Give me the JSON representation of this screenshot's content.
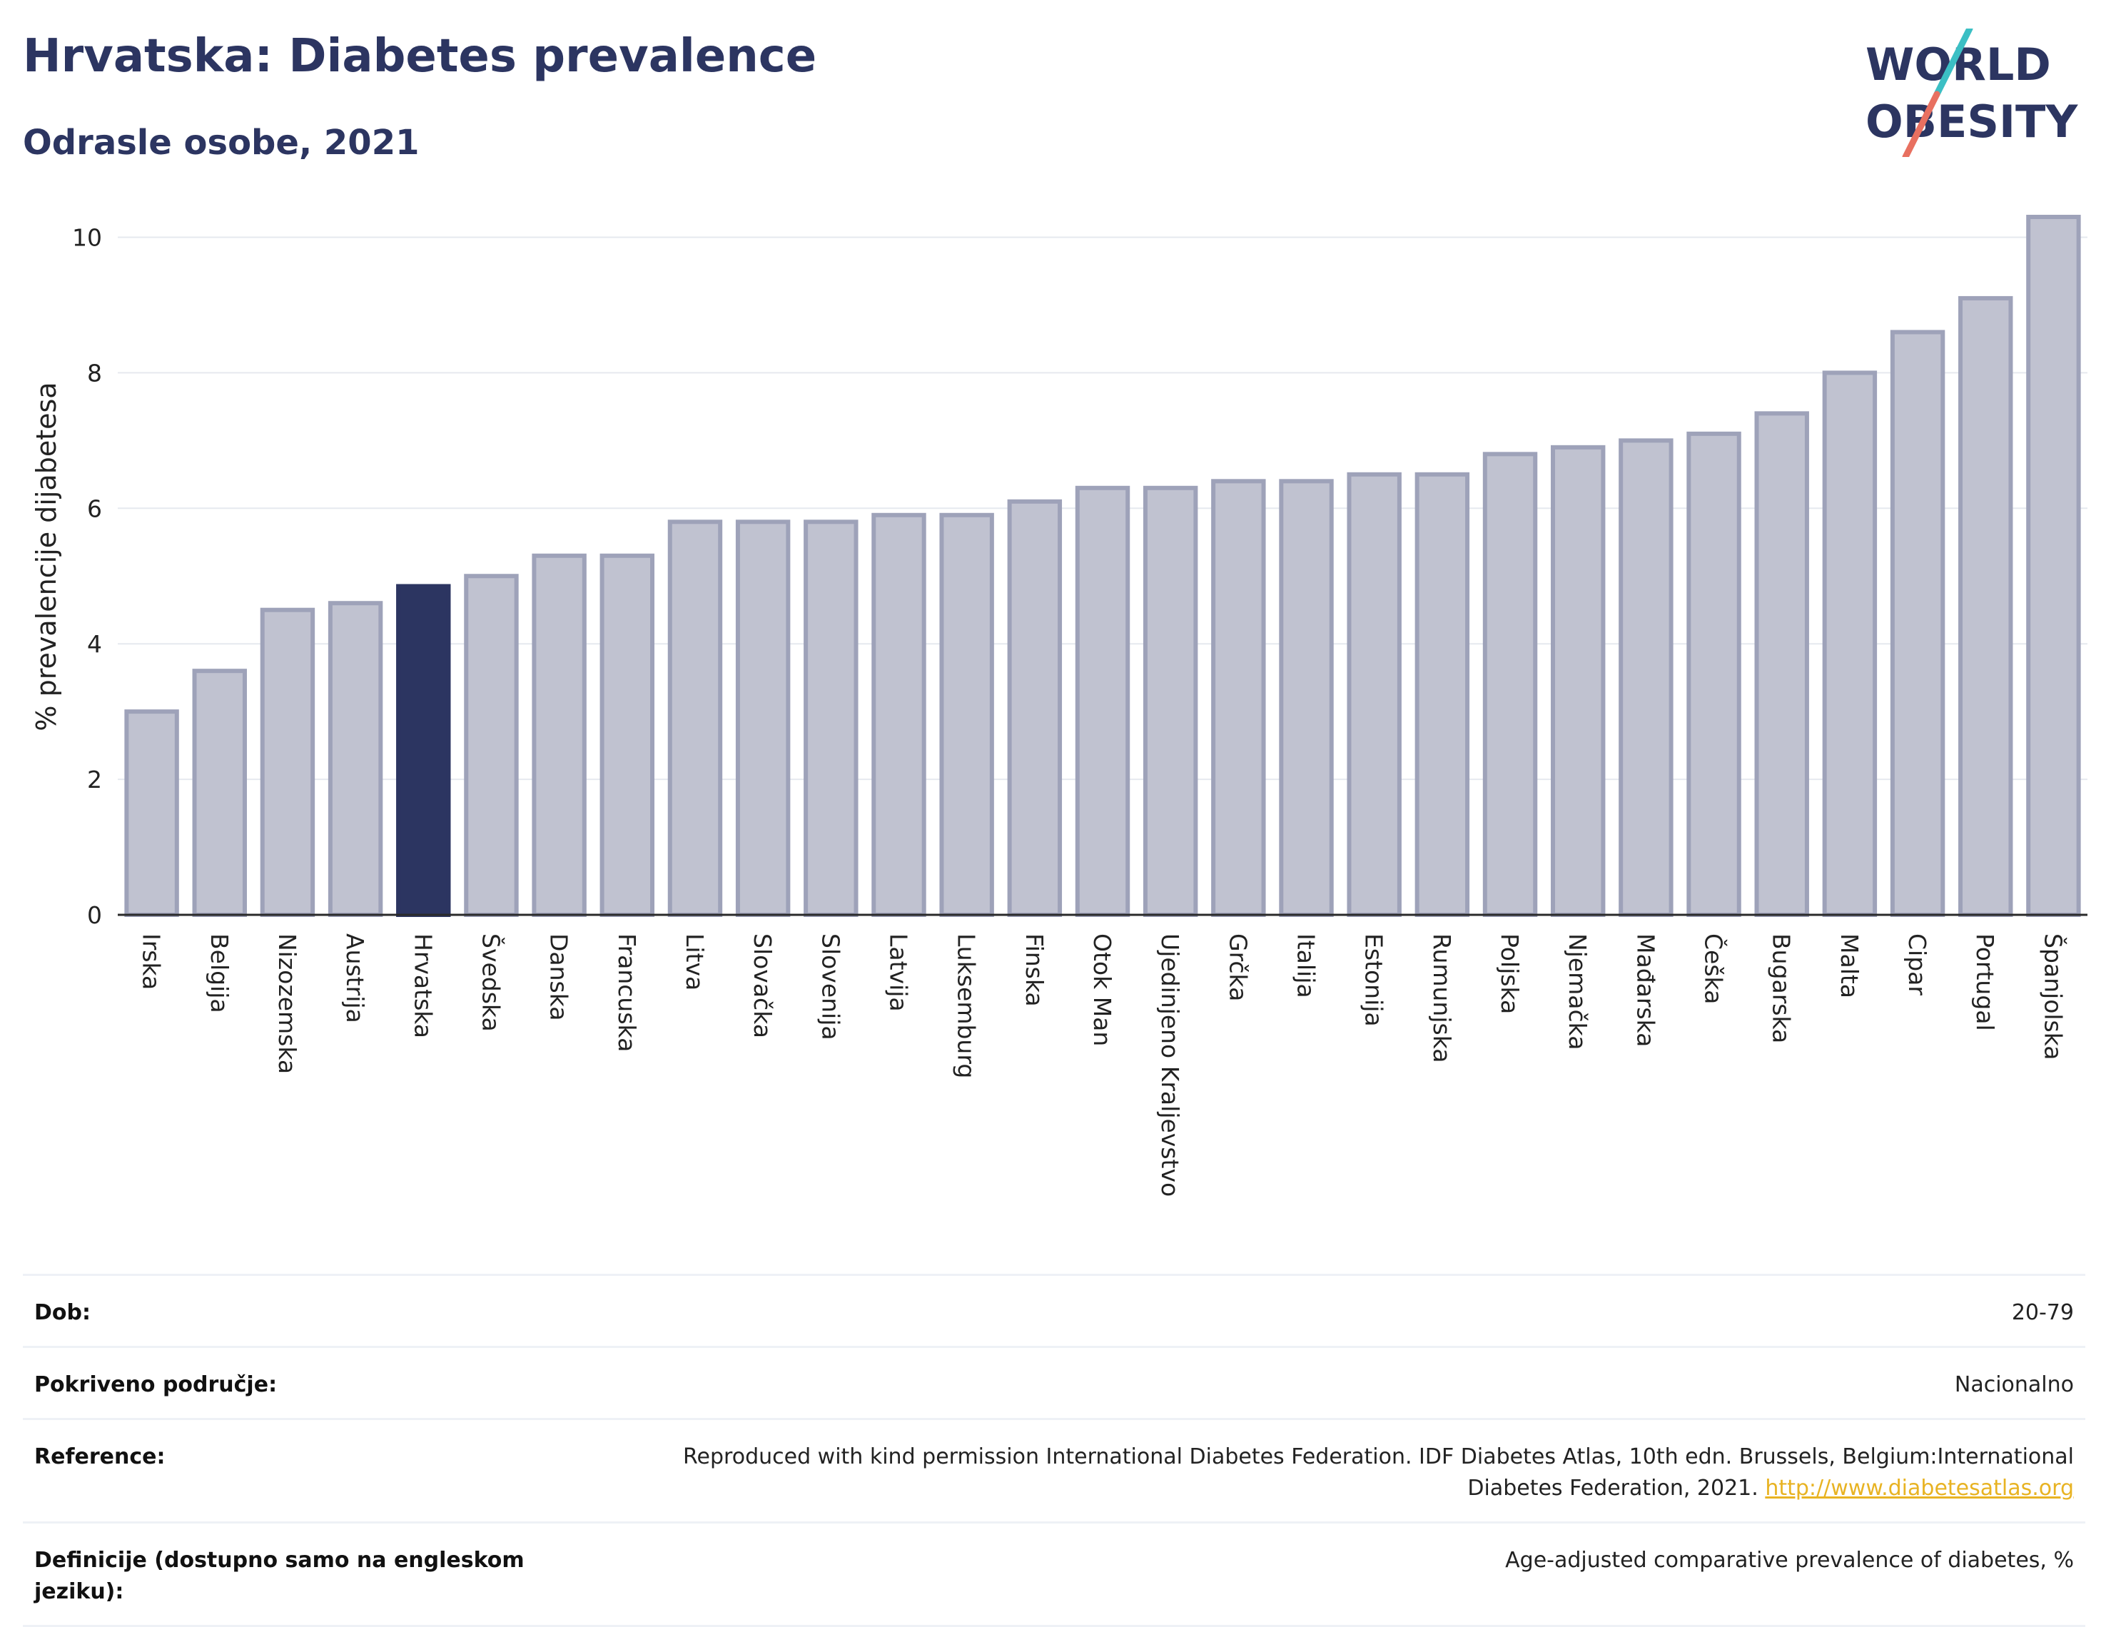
{
  "header": {
    "title": "Hrvatska: Diabetes prevalence",
    "subtitle": "Odrasle osobe, 2021"
  },
  "logo": {
    "line1": "WORLD",
    "line2": "OBESITY",
    "accent_colors": [
      "#3bbfc4",
      "#e87060"
    ],
    "text_color": "#2c3561"
  },
  "chart_data": {
    "type": "bar",
    "title": "Hrvatska: Diabetes prevalence",
    "subtitle": "Odrasle osobe, 2021",
    "xlabel": "",
    "ylabel": "% prevalencije dijabetesa",
    "ylim": [
      0,
      10.5
    ],
    "yticks": [
      0,
      2,
      4,
      6,
      8,
      10
    ],
    "grid": true,
    "highlight": "Hrvatska",
    "colors": {
      "bar": "#c0c2d0",
      "bar_border": "#9ea2b9",
      "highlight": "#2c3561"
    },
    "categories": [
      "Irska",
      "Belgija",
      "Nizozemska",
      "Austrija",
      "Hrvatska",
      "Švedska",
      "Danska",
      "Francuska",
      "Litva",
      "Slovačka",
      "Slovenija",
      "Latvija",
      "Luksemburg",
      "Finska",
      "Otok Man",
      "Ujedinjeno Kraljevstvo",
      "Grčka",
      "Italija",
      "Estonija",
      "Rumunjska",
      "Poljska",
      "Njemačka",
      "Mađarska",
      "Češka",
      "Bugarska",
      "Malta",
      "Cipar",
      "Portugal",
      "Španjolska"
    ],
    "values": [
      3.0,
      3.6,
      4.5,
      4.6,
      4.85,
      5.0,
      5.3,
      5.3,
      5.8,
      5.8,
      5.8,
      5.9,
      5.9,
      6.1,
      6.3,
      6.3,
      6.4,
      6.4,
      6.5,
      6.5,
      6.8,
      6.9,
      7.0,
      7.1,
      7.4,
      8.0,
      8.6,
      9.1,
      10.3
    ]
  },
  "meta": [
    {
      "key": "Dob:",
      "value": "20-79"
    },
    {
      "key": "Pokriveno područje:",
      "value": "Nacionalno"
    },
    {
      "key": "Reference:",
      "value": "Reproduced with kind permission International Diabetes Federation.  IDF Diabetes Atlas, 10th edn. Brussels, Belgium:International Diabetes Federation, 2021. ",
      "link": "http://www.diabetesatlas.org"
    },
    {
      "key": "Definicije (dostupno samo na engleskom jeziku):",
      "value": "Age-adjusted comparative prevalence of diabetes, %"
    }
  ]
}
